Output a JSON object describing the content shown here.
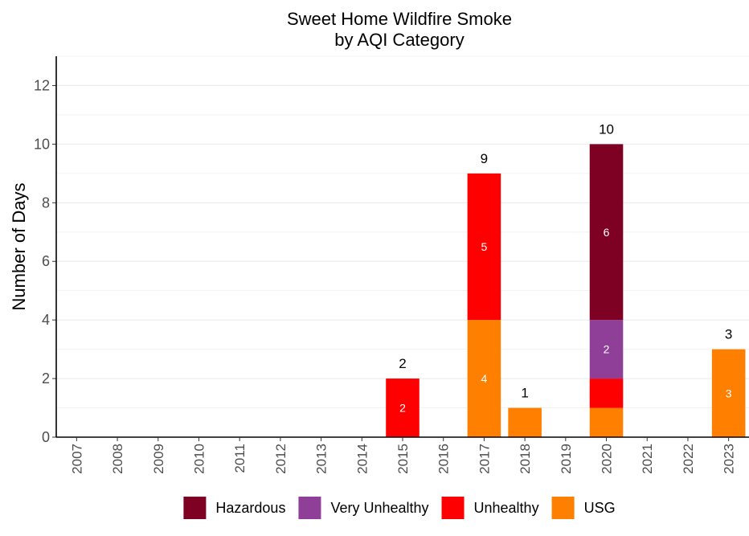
{
  "chart_data": {
    "type": "bar",
    "stacked": true,
    "title": "Sweet Home Wildfire Smoke",
    "subtitle": "by AQI Category",
    "xlabel": "",
    "ylabel": "Number of Days",
    "ylim": [
      0,
      13
    ],
    "yticks": [
      0,
      2,
      4,
      6,
      8,
      10,
      12
    ],
    "grid": true,
    "legend_position": "bottom",
    "categories": [
      "2007",
      "2008",
      "2009",
      "2010",
      "2011",
      "2012",
      "2013",
      "2014",
      "2015",
      "2016",
      "2017",
      "2018",
      "2019",
      "2020",
      "2021",
      "2022",
      "2023"
    ],
    "series": [
      {
        "name": "USG",
        "color": "#ff7f00",
        "values": [
          0,
          0,
          0,
          0,
          0,
          0,
          0,
          0,
          0,
          0,
          4,
          1,
          0,
          1,
          0,
          0,
          3
        ]
      },
      {
        "name": "Unhealthy",
        "color": "#ff0000",
        "values": [
          0,
          0,
          0,
          0,
          0,
          0,
          0,
          0,
          2,
          0,
          5,
          0,
          0,
          1,
          0,
          0,
          0
        ]
      },
      {
        "name": "Very Unhealthy",
        "color": "#8f3f97",
        "values": [
          0,
          0,
          0,
          0,
          0,
          0,
          0,
          0,
          0,
          0,
          0,
          0,
          0,
          2,
          0,
          0,
          0
        ]
      },
      {
        "name": "Hazardous",
        "color": "#7e0023",
        "values": [
          0,
          0,
          0,
          0,
          0,
          0,
          0,
          0,
          0,
          0,
          0,
          0,
          0,
          6,
          0,
          0,
          0
        ]
      }
    ],
    "totals": [
      null,
      null,
      null,
      null,
      null,
      null,
      null,
      null,
      2,
      null,
      9,
      1,
      null,
      10,
      null,
      null,
      3
    ],
    "segment_labels": [
      {
        "category": "2015",
        "series": "Unhealthy",
        "text": "2"
      },
      {
        "category": "2017",
        "series": "USG",
        "text": "4"
      },
      {
        "category": "2017",
        "series": "Unhealthy",
        "text": "5"
      },
      {
        "category": "2020",
        "series": "Very Unhealthy",
        "text": "2"
      },
      {
        "category": "2020",
        "series": "Hazardous",
        "text": "6"
      },
      {
        "category": "2023",
        "series": "USG",
        "text": "3"
      }
    ],
    "legend_order": [
      "Hazardous",
      "Very Unhealthy",
      "Unhealthy",
      "USG"
    ],
    "colors": {
      "axis": "#000000",
      "grid": "#ebebeb",
      "tick_text": "#4d4d4d",
      "segment_label": "#ffffff"
    }
  }
}
